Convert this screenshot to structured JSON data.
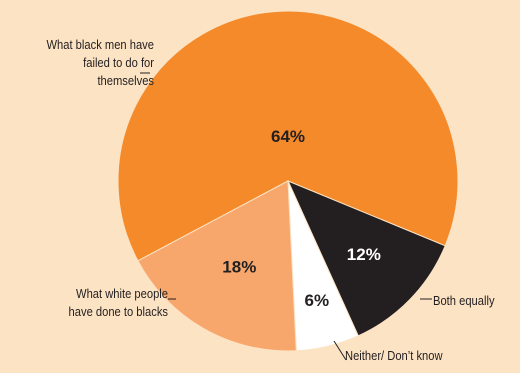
{
  "chart_data": {
    "type": "pie",
    "title": "",
    "slices": [
      {
        "label": "What black men have failed to do for themselves",
        "value": 64,
        "pct_label": "64%",
        "color": "#F58A2A",
        "text_color": "#231F20"
      },
      {
        "label": "Both equally",
        "value": 12,
        "pct_label": "12%",
        "color": "#231F20",
        "text_color": "#FFFFFF"
      },
      {
        "label": "Neither/ Don’t know",
        "value": 6,
        "pct_label": "6%",
        "color": "#FFFFFF",
        "text_color": "#231F20"
      },
      {
        "label": "What white people have done to blacks",
        "value": 18,
        "pct_label": "18%",
        "color": "#F8A76C",
        "text_color": "#231F20"
      }
    ],
    "label_lines": {
      "black_men": [
        "What black men have",
        "failed to do for",
        "themselves"
      ],
      "both": "Both equally",
      "neither": "Neither/ Don’t know",
      "white_people": [
        "What white people",
        "have done to blacks"
      ]
    }
  },
  "colors": {
    "background": "#FCE3C4",
    "leader": "#231F20"
  }
}
